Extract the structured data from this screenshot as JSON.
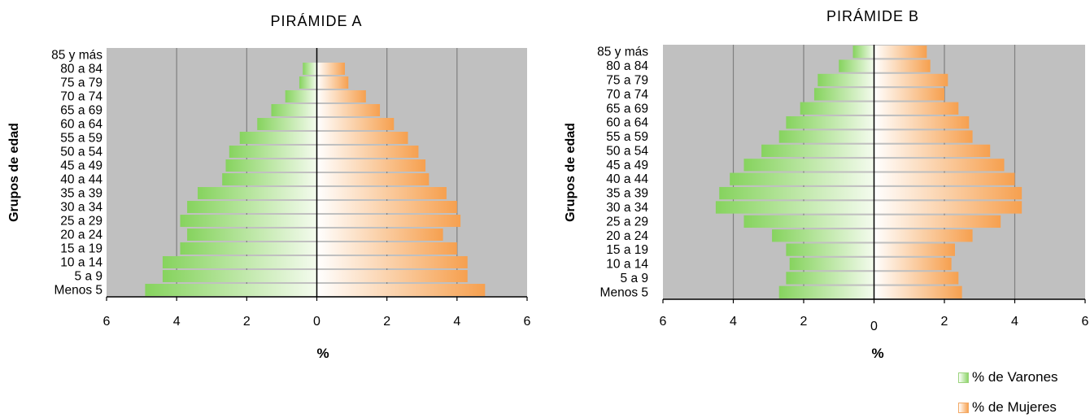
{
  "colors": {
    "plot_bg": "#c0c0c0",
    "gridline": "#7f7f7f",
    "male_light": "#f2fbea",
    "male_dark": "#86d35e",
    "female_light": "#ffffff",
    "female_dark": "#f6a04f"
  },
  "legend": {
    "male": "% de Varones",
    "female": "% de Mujeres"
  },
  "chart_data": [
    {
      "type": "bar",
      "orientation": "horizontal",
      "title": "PIRÁMIDE A",
      "xlabel": "%",
      "ylabel": "Grupos de edad",
      "xlim": [
        -6,
        6
      ],
      "x_ticks": [
        -6,
        -4,
        -2,
        0,
        2,
        4,
        6
      ],
      "x_tick_labels": [
        "6",
        "4",
        "2",
        "0",
        "2",
        "4",
        "6"
      ],
      "grid": true,
      "categories": [
        "Menos 5",
        "5 a 9",
        "10 a 14",
        "15 a 19",
        "20 a 24",
        "25 a 29",
        "30 a 34",
        "35 a 39",
        "40 a 44",
        "45 a 49",
        "50 a 54",
        "55 a 59",
        "60 a 64",
        "65 a 69",
        "70 a 74",
        "75 a 79",
        "80 a 84",
        "85 y más"
      ],
      "series": [
        {
          "name": "% de Varones",
          "values": [
            4.9,
            4.4,
            4.4,
            3.9,
            3.7,
            3.9,
            3.7,
            3.4,
            2.7,
            2.6,
            2.5,
            2.2,
            1.7,
            1.3,
            0.9,
            0.5,
            0.4,
            0.0
          ]
        },
        {
          "name": "% de Mujeres",
          "values": [
            4.8,
            4.3,
            4.3,
            4.0,
            3.6,
            4.1,
            4.0,
            3.7,
            3.2,
            3.1,
            2.9,
            2.6,
            2.2,
            1.8,
            1.4,
            0.9,
            0.8,
            0.0
          ]
        }
      ]
    },
    {
      "type": "bar",
      "orientation": "horizontal",
      "title": "PIRÁMIDE B",
      "xlabel": "%",
      "ylabel": "Grupos de edad",
      "xlim": [
        -6,
        6
      ],
      "x_ticks": [
        -6,
        -4,
        -2,
        0,
        2,
        4,
        6
      ],
      "x_tick_labels": [
        "6",
        "4",
        "2",
        "0",
        "2",
        "4",
        "6"
      ],
      "grid": true,
      "categories": [
        "Menos 5",
        "5 a 9",
        "10 a 14",
        "15 a 19",
        "20 a 24",
        "25 a 29",
        "30 a 34",
        "35 a 39",
        "40 a 44",
        "45 a 49",
        "50 a 54",
        "55 a 59",
        "60 a 64",
        "65 a 69",
        "70 a 74",
        "75 a 79",
        "80 a 84",
        "85 y más"
      ],
      "series": [
        {
          "name": "% de Varones",
          "values": [
            2.7,
            2.5,
            2.4,
            2.5,
            2.9,
            3.7,
            4.5,
            4.4,
            4.1,
            3.7,
            3.2,
            2.7,
            2.5,
            2.1,
            1.7,
            1.6,
            1.0,
            0.6
          ]
        },
        {
          "name": "% de Mujeres",
          "values": [
            2.5,
            2.4,
            2.2,
            2.3,
            2.8,
            3.6,
            4.2,
            4.2,
            4.0,
            3.7,
            3.3,
            2.8,
            2.7,
            2.4,
            2.0,
            2.1,
            1.6,
            1.5
          ]
        }
      ]
    }
  ]
}
